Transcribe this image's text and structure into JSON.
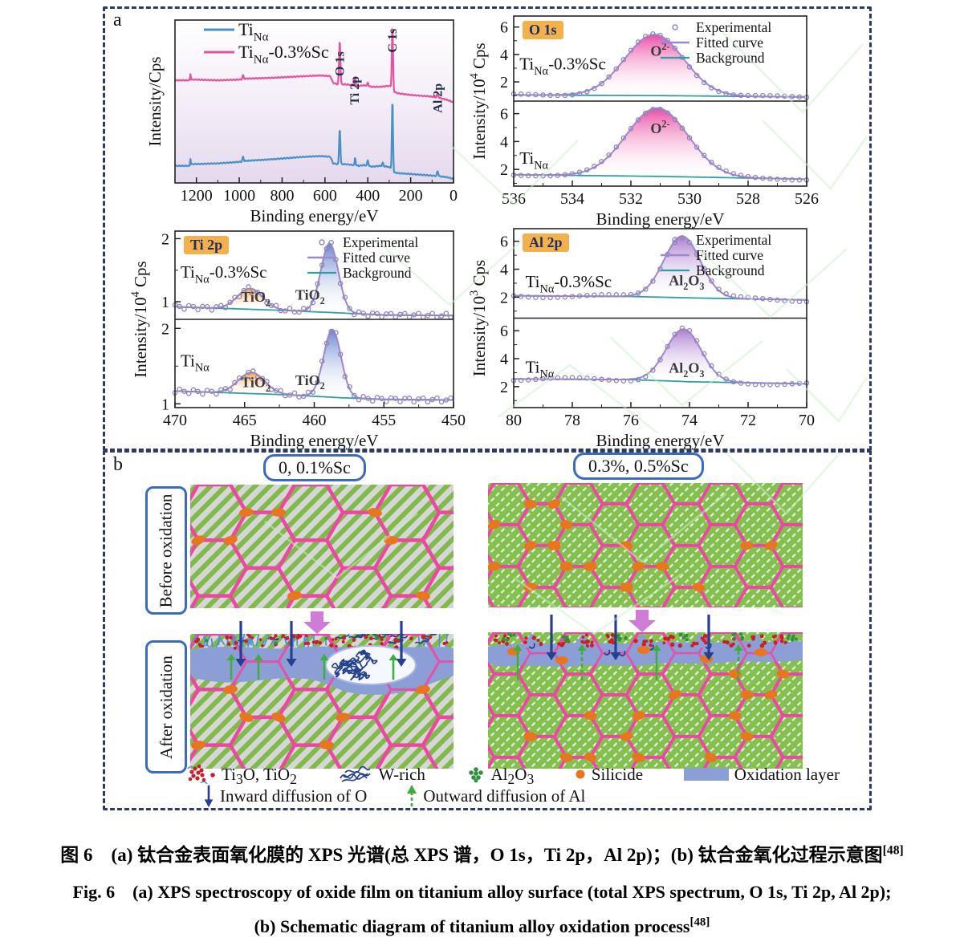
{
  "figure": {
    "panel_a_label": "a",
    "panel_b_label": "b"
  },
  "colors": {
    "surveyPink": "#e7529f",
    "surveyBlue": "#4a90c8",
    "fitted": "#9f86cf",
    "background_line": "#2f9fa5",
    "experimental": "#9084bc",
    "axis": "#222222",
    "annotation": "#22304e",
    "badge_bg": "#f2b14d",
    "badge_text": "#1c2e5e",
    "pinkGrad": "#e8439f",
    "purpleGrad": "#a678cc",
    "orangeGrad": "#f09c3e",
    "blueGrad": "#5f7ec9",
    "boundary": "#ee47a3",
    "grain_gray": "#d6d6d6",
    "grain_stripe": "#7fba4a",
    "grain_green": "#84c050",
    "silicide": "#e8761e",
    "oxidation": "#8b9fd6",
    "inward": "#24408f",
    "outward": "#3fae3f",
    "big_arrow": "#cf7cd6",
    "wrich": "#24408f",
    "red_dot": "#c8202a",
    "al2o3_green": "#2f9040",
    "grass": "#4f93d6",
    "watermark": "#cdeecd"
  },
  "chart_data": [
    {
      "id": "survey-xps",
      "type": "line",
      "title": "Total XPS survey spectrum",
      "xlabel": "Binding energy/eV",
      "ylabel": "Intensity/Cps",
      "x_range": [
        1300,
        0
      ],
      "x_ticks": [
        1200,
        1000,
        800,
        600,
        400,
        200,
        0
      ],
      "legend": [
        {
          "label": "Ti_{Nα}",
          "colorKey": "surveyBlue"
        },
        {
          "label": "Ti_{Nα}-0.3%Sc",
          "colorKey": "surveyPink"
        }
      ],
      "annotations": [
        {
          "text": "O 1s",
          "x": 512,
          "y": 6.55
        },
        {
          "text": "Ti 2p",
          "x": 441,
          "y": 4.8
        },
        {
          "text": "C 1s",
          "x": 266,
          "y": 8.0
        },
        {
          "text": "Al 2p",
          "x": 55,
          "y": 4.3
        }
      ],
      "series": [
        {
          "name": "Ti_{Nα}",
          "colorKey": "surveyBlue",
          "baseline": [
            [
              1300,
              1.05
            ],
            [
              1232,
              1.05
            ],
            [
              1228,
              1.5
            ],
            [
              1224,
              1.15
            ],
            [
              1100,
              1.2
            ],
            [
              990,
              1.3
            ],
            [
              982,
              1.6
            ],
            [
              976,
              1.35
            ],
            [
              850,
              1.45
            ],
            [
              700,
              1.6
            ],
            [
              620,
              1.65
            ],
            [
              575,
              1.6
            ],
            [
              562,
              1.2
            ],
            [
              540,
              1.15
            ],
            [
              500,
              1.15
            ],
            [
              470,
              1.1
            ],
            [
              440,
              1.05
            ],
            [
              420,
              1.1
            ],
            [
              380,
              1.0
            ],
            [
              340,
              1.05
            ],
            [
              310,
              1.0
            ],
            [
              295,
              0.95
            ],
            [
              278,
              0.65
            ],
            [
              260,
              0.6
            ],
            [
              200,
              0.55
            ],
            [
              150,
              0.5
            ],
            [
              100,
              0.45
            ],
            [
              60,
              0.4
            ],
            [
              30,
              0.35
            ],
            [
              0,
              0.25
            ]
          ],
          "peaks": [
            {
              "c": 531,
              "s": 2.8,
              "a": 2.2
            },
            {
              "c": 459,
              "s": 2.0,
              "a": 0.5
            },
            {
              "c": 400,
              "s": 2.5,
              "a": 0.35
            },
            {
              "c": 330,
              "s": 2.5,
              "a": 0.2
            },
            {
              "c": 285,
              "s": 2.6,
              "a": 4.3
            },
            {
              "c": 74,
              "s": 3.0,
              "a": 0.3
            }
          ]
        },
        {
          "name": "Ti_{Nα}-0.3%Sc",
          "colorKey": "surveyPink",
          "baseline": [
            [
              1300,
              6.3
            ],
            [
              1232,
              6.3
            ],
            [
              1228,
              6.7
            ],
            [
              1224,
              6.35
            ],
            [
              1100,
              6.3
            ],
            [
              990,
              6.35
            ],
            [
              982,
              6.6
            ],
            [
              976,
              6.4
            ],
            [
              850,
              6.45
            ],
            [
              700,
              6.55
            ],
            [
              620,
              6.6
            ],
            [
              575,
              6.55
            ],
            [
              562,
              6.15
            ],
            [
              540,
              6.05
            ],
            [
              500,
              6.05
            ],
            [
              470,
              6.0
            ],
            [
              440,
              5.95
            ],
            [
              420,
              6.0
            ],
            [
              380,
              5.9
            ],
            [
              340,
              5.9
            ],
            [
              310,
              5.95
            ],
            [
              295,
              5.95
            ],
            [
              278,
              5.6
            ],
            [
              260,
              5.5
            ],
            [
              200,
              5.4
            ],
            [
              150,
              5.35
            ],
            [
              100,
              5.3
            ],
            [
              60,
              5.2
            ],
            [
              30,
              5.1
            ],
            [
              0,
              4.95
            ]
          ],
          "peaks": [
            {
              "c": 531,
              "s": 3.0,
              "a": 2.7
            },
            {
              "c": 459,
              "s": 2.2,
              "a": 0.5
            },
            {
              "c": 400,
              "s": 2.5,
              "a": 0.2
            },
            {
              "c": 285,
              "s": 2.8,
              "a": 3.9
            },
            {
              "c": 74,
              "s": 3.0,
              "a": 0.3
            }
          ]
        }
      ]
    },
    {
      "id": "o1s",
      "badge": "O 1s",
      "type": "area",
      "xlabel": "Binding energy/eV",
      "ylabel": "Intensity/10^{4} Cps",
      "x_range": [
        536,
        526
      ],
      "x_ticks": [
        536,
        534,
        532,
        530,
        528,
        526
      ],
      "legend": [
        "Experimental",
        "Fitted curve",
        "Background"
      ],
      "subplots": [
        {
          "sample": "Ti_{Nα}-0.3%Sc",
          "y_range": [
            0.6,
            6.8
          ],
          "y_ticks": [
            2,
            4,
            6
          ],
          "background": [
            [
              536,
              1.05
            ],
            [
              531,
              1.0
            ],
            [
              526,
              0.9
            ]
          ],
          "peaks": [
            {
              "center": 531.2,
              "sigma": 1.0,
              "amplitude": 4.45,
              "fill": "pinkGrad",
              "label": "O^{2-}",
              "label_x": 531.0,
              "label_y": 3.9
            }
          ],
          "sample_label_pos": [
            535.8,
            2.9
          ],
          "jitter": 0.07,
          "point_step": 0.25
        },
        {
          "sample": "Ti_{Nα}",
          "y_range": [
            0.8,
            6.9
          ],
          "y_ticks": [
            2,
            4,
            6
          ],
          "background": [
            [
              536,
              1.62
            ],
            [
              531,
              1.5
            ],
            [
              526,
              1.3
            ]
          ],
          "peaks": [
            {
              "center": 531.1,
              "sigma": 1.05,
              "amplitude": 4.9,
              "fill": "pinkGrad",
              "label": "O^{2-}",
              "label_x": 531.0,
              "label_y": 4.6
            }
          ],
          "sample_label_pos": [
            535.8,
            2.4
          ],
          "jitter": 0.07,
          "point_step": 0.25
        }
      ]
    },
    {
      "id": "ti2p",
      "badge": "Ti 2p",
      "type": "area",
      "xlabel": "Binding energy/eV",
      "ylabel": "Intensity/10^{4} Cps",
      "x_range": [
        470,
        450
      ],
      "x_ticks": [
        470,
        465,
        460,
        455,
        450
      ],
      "legend": [
        "Experimental",
        "Fitted curve",
        "Background"
      ],
      "subplots": [
        {
          "sample": "Ti_{Nα}-0.3%Sc",
          "y_range": [
            0.72,
            2.12
          ],
          "y_ticks": [
            1,
            2
          ],
          "background": [
            [
              470,
              0.92
            ],
            [
              462,
              0.86
            ],
            [
              458,
              0.82
            ],
            [
              455,
              0.79
            ],
            [
              450,
              0.78
            ]
          ],
          "peaks": [
            {
              "center": 464.6,
              "sigma": 0.9,
              "amplitude": 0.33,
              "fill": "orangeGrad",
              "label": "TiO_{2}",
              "label_x": 464.2,
              "label_y": 1.0
            },
            {
              "center": 458.9,
              "sigma": 0.62,
              "amplitude": 1.1,
              "fill": "blueGrad",
              "label": "TiO_{2}",
              "label_x": 460.3,
              "label_y": 1.03
            }
          ],
          "sample_label_pos": [
            469.6,
            1.38
          ],
          "jitter": 0.035,
          "point_step": 0.33
        },
        {
          "sample": "Ti_{Nα}",
          "y_range": [
            0.95,
            2.12
          ],
          "y_ticks": [
            1,
            2
          ],
          "background": [
            [
              470,
              1.17
            ],
            [
              462,
              1.12
            ],
            [
              458,
              1.08
            ],
            [
              455,
              1.06
            ],
            [
              450,
              1.05
            ]
          ],
          "peaks": [
            {
              "center": 464.5,
              "sigma": 0.95,
              "amplitude": 0.28,
              "fill": "orangeGrad",
              "label": "TiO_{2}",
              "label_x": 464.2,
              "label_y": 1.22
            },
            {
              "center": 458.7,
              "sigma": 0.62,
              "amplitude": 0.9,
              "fill": "blueGrad",
              "label": "TiO_{2}",
              "label_x": 460.3,
              "label_y": 1.25
            }
          ],
          "sample_label_pos": [
            469.6,
            1.5
          ],
          "jitter": 0.03,
          "point_step": 0.33
        }
      ]
    },
    {
      "id": "al2p",
      "badge": "Al 2p",
      "type": "area",
      "xlabel": "Binding energy/eV",
      "ylabel": "Intensity/10^{3} Cps",
      "x_range": [
        80,
        70
      ],
      "x_ticks": [
        80,
        78,
        76,
        74,
        72,
        70
      ],
      "legend": [
        "Experimental",
        "Fitted curve",
        "Background"
      ],
      "subplots": [
        {
          "sample": "Ti_{Nα}-0.3%Sc",
          "y_range": [
            0.5,
            6.9
          ],
          "y_ticks": [
            2,
            4,
            6
          ],
          "background": [
            [
              80,
              2.1
            ],
            [
              76,
              2.05
            ],
            [
              74,
              1.95
            ],
            [
              70,
              1.8
            ]
          ],
          "peaks": [
            {
              "center": 74.25,
              "sigma": 0.62,
              "amplitude": 4.4,
              "fill": "purpleGrad",
              "label": "Al_{2}O_{3}",
              "label_x": 74.1,
              "label_y": 2.85
            }
          ],
          "sample_label_pos": [
            79.6,
            2.7
          ],
          "jitter": 0.12,
          "point_step": 0.25
        },
        {
          "sample": "Ti_{Nα}",
          "y_range": [
            0.5,
            6.9
          ],
          "y_ticks": [
            2,
            4,
            6
          ],
          "background": [
            [
              80,
              2.55
            ],
            [
              76,
              2.5
            ],
            [
              74,
              2.35
            ],
            [
              70,
              2.2
            ]
          ],
          "peaks": [
            {
              "center": 74.2,
              "sigma": 0.6,
              "amplitude": 3.75,
              "fill": "purpleGrad",
              "label": "Al_{2}O_{3}",
              "label_x": 74.1,
              "label_y": 3.0
            }
          ],
          "sample_label_pos": [
            79.6,
            3.0
          ],
          "jitter": 0.12,
          "point_step": 0.25
        }
      ]
    }
  ],
  "section_b": {
    "col_badges": [
      "0, 0.1%Sc",
      "0.3%, 0.5%Sc"
    ],
    "row_labels": [
      "Before oxidation",
      "After oxidation"
    ],
    "legend_row1": [
      {
        "icon": "ti3o-tio2-cluster-icon",
        "label": "Ti_{3}O, TiO_{2}"
      },
      {
        "icon": "w-rich-icon",
        "label": "W-rich"
      },
      {
        "icon": "al2o3-cluster-icon",
        "label": "Al_{2}O_{3}"
      },
      {
        "icon": "silicide-icon",
        "label": "Silicide"
      },
      {
        "icon": "oxidation-layer-icon",
        "label": "Oxidation layer"
      }
    ],
    "legend_row2": [
      {
        "icon": "inward-arrow-icon",
        "label": "Inward diffusion of O"
      },
      {
        "icon": "outward-arrow-icon",
        "label": "Outward diffusion of Al"
      }
    ]
  },
  "caption": {
    "line1_zh": "图 6　(a) 钛合金表面氧化膜的 XPS 光谱(总 XPS 谱，O 1s，Ti 2p，Al 2p)；(b) 钛合金氧化过程示意图^{[48]}",
    "line2_en": "Fig. 6　(a) XPS spectroscopy of oxide film on titanium alloy surface (total XPS spectrum, O 1s, Ti 2p, Al 2p);",
    "line3_en": "(b) Schematic diagram of titanium alloy oxidation process^{[48]}"
  }
}
